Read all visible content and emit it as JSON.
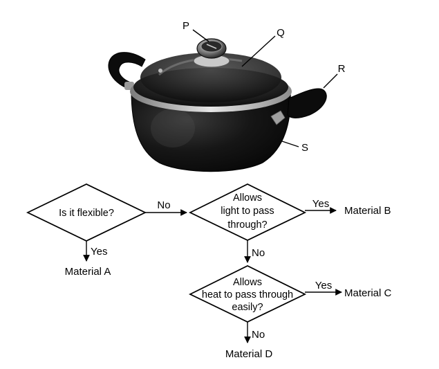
{
  "pot": {
    "labels": {
      "p": "P",
      "q": "Q",
      "r": "R",
      "s": "S"
    },
    "colors": {
      "body": "#141414",
      "lid_glass": "#2a2a2a",
      "rim": "#b8b8b8",
      "handle": "#0c0c0c"
    }
  },
  "flowchart": {
    "q1": {
      "text": "Is it flexible?"
    },
    "q2": {
      "lines": [
        "Allows",
        "light to pass",
        "through?"
      ]
    },
    "q3": {
      "lines": [
        "Allows",
        "heat to pass through",
        "easily?"
      ]
    },
    "edges": {
      "yes": "Yes",
      "no": "No"
    },
    "outcomes": {
      "a": "Material A",
      "b": "Material B",
      "c": "Material C",
      "d": "Material D"
    }
  }
}
